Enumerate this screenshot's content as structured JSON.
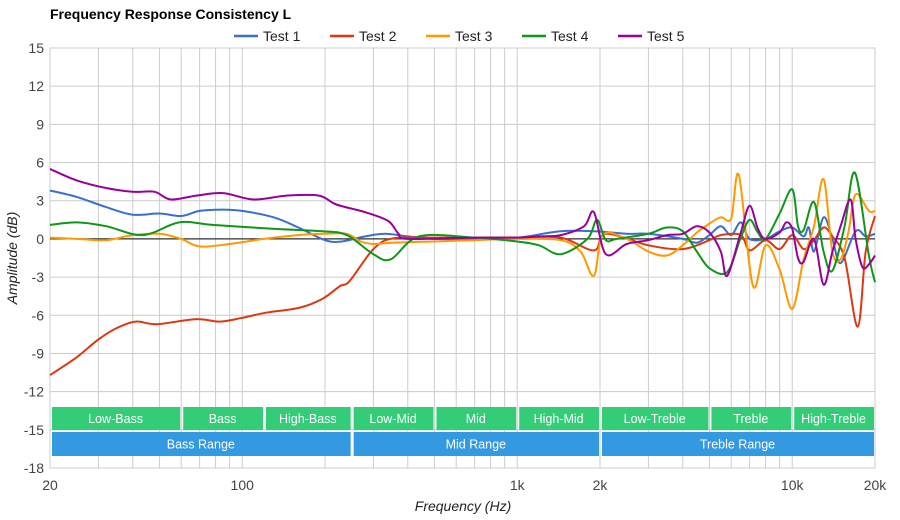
{
  "chart_data": {
    "type": "line",
    "title": "Frequency Response Consistency L",
    "xlabel": "Frequency (Hz)",
    "ylabel": "Amplitude (dB)",
    "xscale": "log",
    "xlim": [
      20,
      20000
    ],
    "ylim": [
      -18,
      15
    ],
    "yticks": [
      15,
      12,
      9,
      6,
      3,
      0,
      -3,
      -6,
      -9,
      -12,
      -15,
      -18
    ],
    "xticks": [
      {
        "v": 20,
        "label": "20"
      },
      {
        "v": 100,
        "label": "100"
      },
      {
        "v": 1000,
        "label": "1k"
      },
      {
        "v": 2000,
        "label": "2k"
      },
      {
        "v": 10000,
        "label": "10k"
      },
      {
        "v": 20000,
        "label": "20k"
      }
    ],
    "grid": true,
    "legend_position": "top",
    "series": [
      {
        "name": "Test 1",
        "color": "#3a6fd0",
        "points": [
          [
            20,
            3.8
          ],
          [
            25,
            3.3
          ],
          [
            32,
            2.5
          ],
          [
            40,
            1.9
          ],
          [
            50,
            2.0
          ],
          [
            60,
            1.8
          ],
          [
            70,
            2.2
          ],
          [
            85,
            2.3
          ],
          [
            100,
            2.2
          ],
          [
            130,
            1.7
          ],
          [
            160,
            0.9
          ],
          [
            200,
            -0.1
          ],
          [
            230,
            -0.2
          ],
          [
            280,
            0.2
          ],
          [
            330,
            0.4
          ],
          [
            400,
            0.2
          ],
          [
            500,
            0.0
          ],
          [
            700,
            0.0
          ],
          [
            1000,
            0.1
          ],
          [
            1440,
            0.6
          ],
          [
            1900,
            0.6
          ],
          [
            2500,
            0.4
          ],
          [
            3000,
            0.4
          ],
          [
            4000,
            0.0
          ],
          [
            4500,
            -0.3
          ],
          [
            5000,
            0.3
          ],
          [
            5500,
            1.0
          ],
          [
            6000,
            0.3
          ],
          [
            6500,
            1.3
          ],
          [
            7000,
            0.0
          ],
          [
            8000,
            0.0
          ],
          [
            9000,
            0.6
          ],
          [
            10000,
            0.9
          ],
          [
            11000,
            0.2
          ],
          [
            11500,
            0.9
          ],
          [
            12000,
            -1.0
          ],
          [
            13000,
            1.7
          ],
          [
            14000,
            0.0
          ],
          [
            15000,
            -1.9
          ],
          [
            17000,
            0.6
          ],
          [
            18500,
            0.2
          ],
          [
            20000,
            0.4
          ]
        ]
      },
      {
        "name": "Test 2",
        "color": "#dc3912",
        "points": [
          [
            20,
            -10.7
          ],
          [
            25,
            -9.3
          ],
          [
            30,
            -7.9
          ],
          [
            35,
            -7.0
          ],
          [
            41,
            -6.5
          ],
          [
            49,
            -6.7
          ],
          [
            68,
            -6.3
          ],
          [
            83,
            -6.5
          ],
          [
            100,
            -6.2
          ],
          [
            122,
            -5.8
          ],
          [
            162,
            -5.4
          ],
          [
            196,
            -4.7
          ],
          [
            227,
            -3.7
          ],
          [
            246,
            -3.3
          ],
          [
            300,
            -0.8
          ],
          [
            354,
            0.05
          ],
          [
            500,
            0.1
          ],
          [
            1000,
            0.1
          ],
          [
            1440,
            0.1
          ],
          [
            1900,
            -0.9
          ],
          [
            2100,
            0.4
          ],
          [
            3000,
            -0.5
          ],
          [
            4000,
            -0.8
          ],
          [
            5000,
            -0.1
          ],
          [
            5500,
            0.3
          ],
          [
            6500,
            0.3
          ],
          [
            7000,
            -0.9
          ],
          [
            8000,
            -0.1
          ],
          [
            9000,
            -0.8
          ],
          [
            10000,
            0.3
          ],
          [
            11000,
            -0.8
          ],
          [
            12000,
            -0.1
          ],
          [
            13000,
            0.9
          ],
          [
            14000,
            0.2
          ],
          [
            15500,
            -1.5
          ],
          [
            17300,
            -6.9
          ],
          [
            18500,
            -1.0
          ],
          [
            20000,
            1.8
          ]
        ]
      },
      {
        "name": "Test 3",
        "color": "#ff9900",
        "points": [
          [
            20,
            0.1
          ],
          [
            25,
            0.0
          ],
          [
            32,
            -0.1
          ],
          [
            40,
            0.3
          ],
          [
            50,
            0.4
          ],
          [
            60,
            0.0
          ],
          [
            70,
            -0.6
          ],
          [
            90,
            -0.4
          ],
          [
            120,
            0.0
          ],
          [
            160,
            0.3
          ],
          [
            200,
            0.4
          ],
          [
            240,
            0.4
          ],
          [
            270,
            -0.2
          ],
          [
            300,
            -0.4
          ],
          [
            350,
            -0.3
          ],
          [
            500,
            -0.2
          ],
          [
            700,
            -0.1
          ],
          [
            1000,
            0.0
          ],
          [
            1440,
            -0.1
          ],
          [
            1700,
            -1.0
          ],
          [
            1900,
            -2.9
          ],
          [
            2050,
            0.3
          ],
          [
            2500,
            0.0
          ],
          [
            3000,
            -1.0
          ],
          [
            3500,
            -1.3
          ],
          [
            4000,
            -0.5
          ],
          [
            4500,
            0.5
          ],
          [
            5000,
            1.2
          ],
          [
            5500,
            1.7
          ],
          [
            6000,
            1.6
          ],
          [
            6400,
            5.0
          ],
          [
            7200,
            -3.7
          ],
          [
            8000,
            -0.5
          ],
          [
            9000,
            -2.4
          ],
          [
            10000,
            -5.5
          ],
          [
            11000,
            -1.6
          ],
          [
            12000,
            1.0
          ],
          [
            13000,
            4.7
          ],
          [
            14000,
            -1.0
          ],
          [
            15000,
            -1.6
          ],
          [
            16000,
            0.5
          ],
          [
            17000,
            3.5
          ],
          [
            19000,
            2.2
          ],
          [
            20000,
            2.2
          ]
        ]
      },
      {
        "name": "Test 4",
        "color": "#109618",
        "points": [
          [
            20,
            1.1
          ],
          [
            25,
            1.3
          ],
          [
            32,
            1.0
          ],
          [
            43.5,
            0.3
          ],
          [
            59,
            1.3
          ],
          [
            78,
            1.1
          ],
          [
            129,
            0.8
          ],
          [
            196,
            0.6
          ],
          [
            240,
            0.3
          ],
          [
            300,
            -1.2
          ],
          [
            347,
            -1.6
          ],
          [
            440,
            0.2
          ],
          [
            700,
            0.1
          ],
          [
            1000,
            -0.2
          ],
          [
            1200,
            -0.5
          ],
          [
            1440,
            -1.2
          ],
          [
            1800,
            0.0
          ],
          [
            1950,
            1.5
          ],
          [
            2100,
            -0.1
          ],
          [
            2300,
            0.0
          ],
          [
            3000,
            0.4
          ],
          [
            3500,
            0.9
          ],
          [
            4000,
            0.6
          ],
          [
            4500,
            -1.0
          ],
          [
            5000,
            -2.3
          ],
          [
            5800,
            -2.6
          ],
          [
            6500,
            0.1
          ],
          [
            7000,
            1.5
          ],
          [
            7500,
            0.5
          ],
          [
            8000,
            0.0
          ],
          [
            9000,
            2.0
          ],
          [
            10000,
            3.9
          ],
          [
            10500,
            1.0
          ],
          [
            11000,
            0.7
          ],
          [
            12000,
            2.9
          ],
          [
            13000,
            -1.0
          ],
          [
            14000,
            -2.5
          ],
          [
            15500,
            1.0
          ],
          [
            16900,
            5.2
          ],
          [
            19000,
            -1.3
          ],
          [
            20000,
            -3.4
          ]
        ]
      },
      {
        "name": "Test 5",
        "color": "#990099",
        "points": [
          [
            20,
            5.5
          ],
          [
            25,
            4.6
          ],
          [
            32,
            4.0
          ],
          [
            40,
            3.7
          ],
          [
            48,
            3.7
          ],
          [
            55,
            3.1
          ],
          [
            68,
            3.4
          ],
          [
            85,
            3.6
          ],
          [
            110,
            3.1
          ],
          [
            145,
            3.4
          ],
          [
            190,
            3.4
          ],
          [
            220,
            2.7
          ],
          [
            280,
            2.1
          ],
          [
            340,
            1.4
          ],
          [
            370,
            0.4
          ],
          [
            400,
            0.0
          ],
          [
            700,
            0.1
          ],
          [
            1000,
            0.1
          ],
          [
            1200,
            0.2
          ],
          [
            1440,
            0.3
          ],
          [
            1750,
            1.0
          ],
          [
            1900,
            2.1
          ],
          [
            2100,
            -1.2
          ],
          [
            2500,
            -0.4
          ],
          [
            3000,
            -0.1
          ],
          [
            3500,
            0.3
          ],
          [
            4000,
            0.4
          ],
          [
            4500,
            1.0
          ],
          [
            5000,
            0.5
          ],
          [
            5500,
            -1.0
          ],
          [
            5800,
            -2.9
          ],
          [
            6500,
            0.5
          ],
          [
            7000,
            2.6
          ],
          [
            7500,
            0.8
          ],
          [
            8000,
            0.0
          ],
          [
            9000,
            0.5
          ],
          [
            9500,
            1.3
          ],
          [
            10000,
            0.8
          ],
          [
            10500,
            -1.5
          ],
          [
            11000,
            -1.8
          ],
          [
            12000,
            0.0
          ],
          [
            13000,
            -3.6
          ],
          [
            14000,
            -1.0
          ],
          [
            15000,
            1.0
          ],
          [
            16300,
            3.1
          ],
          [
            17000,
            0.0
          ],
          [
            18000,
            -2.2
          ],
          [
            19000,
            -2.0
          ],
          [
            20000,
            -1.3
          ]
        ]
      }
    ],
    "bands_top": [
      {
        "label": "Low-Bass",
        "from": 20,
        "to": 60
      },
      {
        "label": "Bass",
        "from": 60,
        "to": 120
      },
      {
        "label": "High-Bass",
        "from": 120,
        "to": 250
      },
      {
        "label": "Low-Mid",
        "from": 250,
        "to": 500
      },
      {
        "label": "Mid",
        "from": 500,
        "to": 1000
      },
      {
        "label": "High-Mid",
        "from": 1000,
        "to": 2000
      },
      {
        "label": "Low-Treble",
        "from": 2000,
        "to": 5000
      },
      {
        "label": "Treble",
        "from": 5000,
        "to": 10000
      },
      {
        "label": "High-Treble",
        "from": 10000,
        "to": 20000
      }
    ],
    "bands_bottom": [
      {
        "label": "Bass Range",
        "from": 20,
        "to": 250
      },
      {
        "label": "Mid Range",
        "from": 250,
        "to": 2000
      },
      {
        "label": "Treble Range",
        "from": 2000,
        "to": 20000
      }
    ],
    "band_colors": {
      "top": "#33cc77",
      "bottom": "#3399e0"
    }
  }
}
